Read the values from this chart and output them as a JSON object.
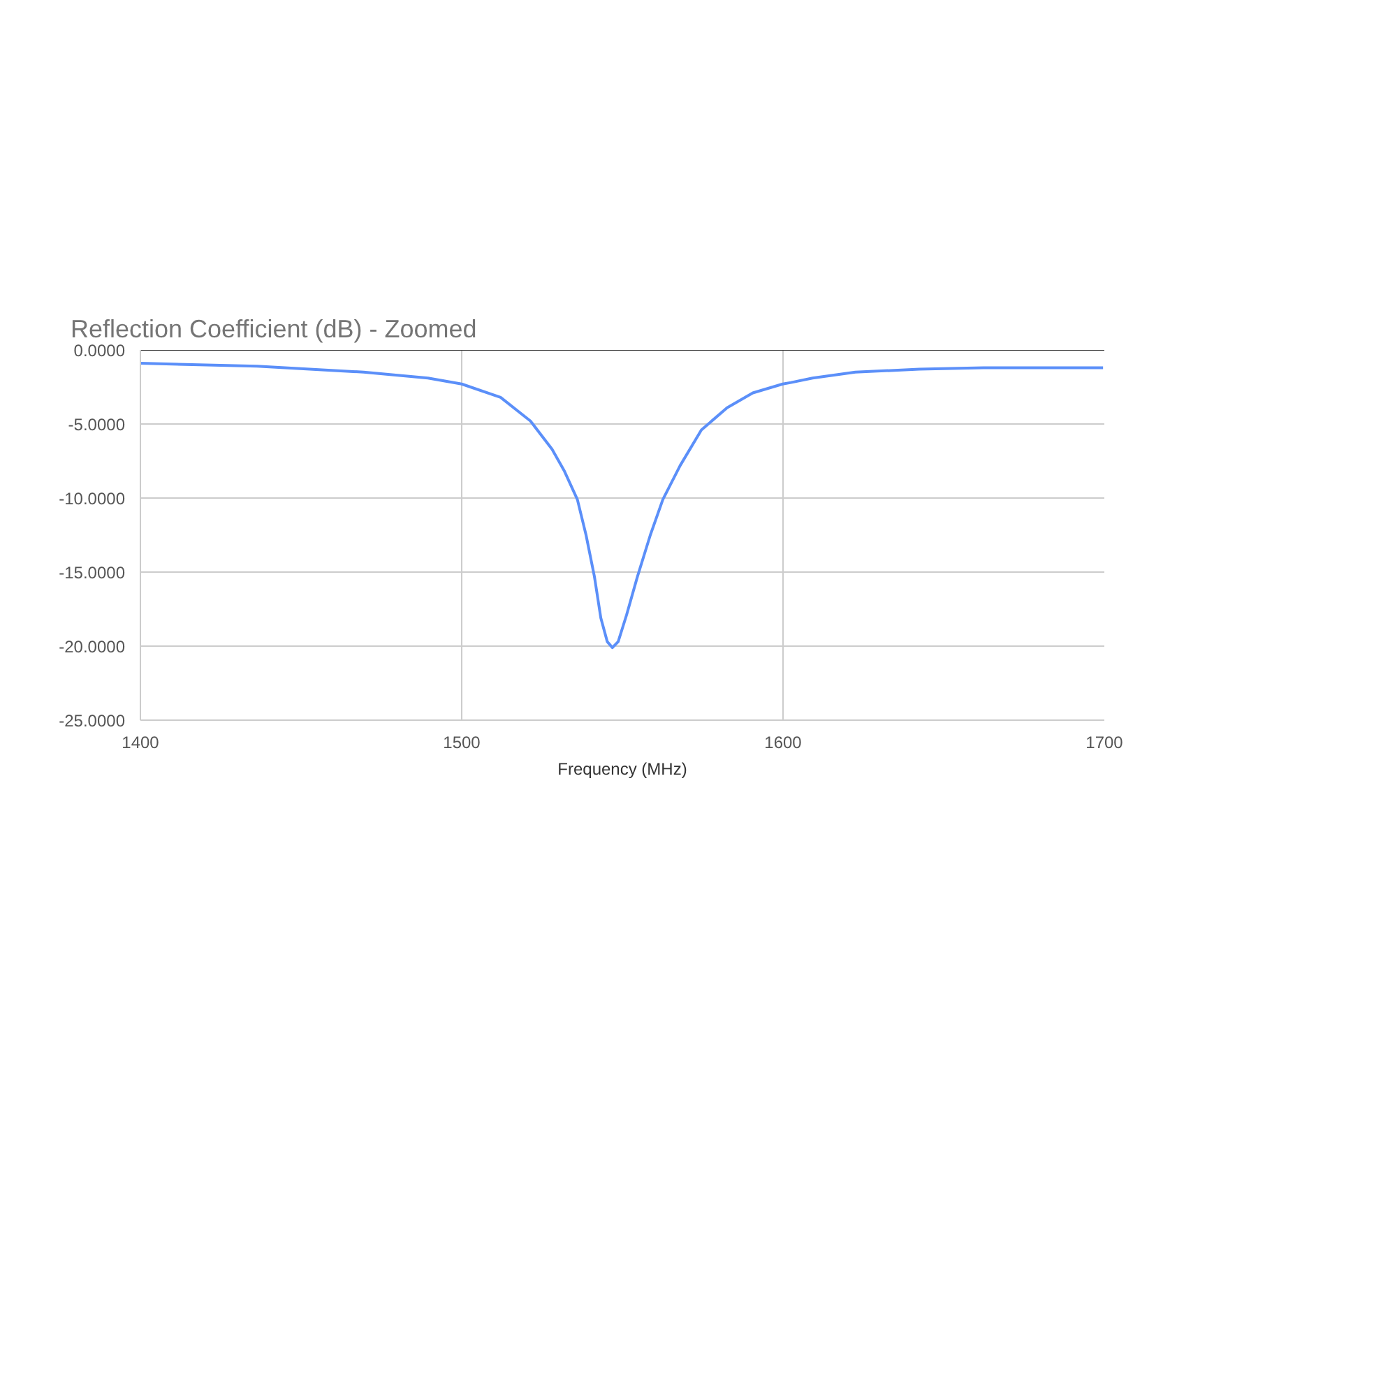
{
  "chart_data": {
    "type": "line",
    "title": "Reflection Coefficient (dB) - Zoomed",
    "xlabel": "Frequency (MHz)",
    "x": [
      1400,
      1436.3,
      1469.5,
      1489.5,
      1500,
      1512.1,
      1521.4,
      1528.1,
      1532.0,
      1536.0,
      1538.7,
      1541.3,
      1543.3,
      1545.3,
      1546.9,
      1548.7,
      1551.3,
      1554.7,
      1558.7,
      1562.6,
      1568.0,
      1574.6,
      1582.6,
      1590.6,
      1599.9,
      1602.5,
      1609.2,
      1622.5,
      1642.4,
      1662.4,
      1699.6
    ],
    "series": [
      {
        "color": "#5b8ff9",
        "values": [
          -0.9,
          -1.1,
          -1.5,
          -1.9,
          -2.3,
          -3.2,
          -4.8,
          -6.7,
          -8.2,
          -10.1,
          -12.5,
          -15.3,
          -18.1,
          -19.7,
          -20.1,
          -19.7,
          -17.9,
          -15.3,
          -12.5,
          -10.1,
          -7.8,
          -5.4,
          -3.9,
          -2.9,
          -2.3,
          -2.2,
          -1.9,
          -1.5,
          -1.3,
          -1.2,
          -1.2
        ]
      }
    ],
    "xlim": [
      1400,
      1700
    ],
    "xticks": [
      1400,
      1500,
      1600,
      1700
    ],
    "ylim": [
      -25,
      0
    ],
    "yticks": [
      {
        "value": 0,
        "label": "0.0000"
      },
      {
        "value": -5,
        "label": "-5.0000"
      },
      {
        "value": -10,
        "label": "-10.0000"
      },
      {
        "value": -15,
        "label": "-15.0000"
      },
      {
        "value": -20,
        "label": "-20.0000"
      },
      {
        "value": -25,
        "label": "-25.0000"
      }
    ],
    "grid": true,
    "marker": "none",
    "line_style": "solid"
  }
}
